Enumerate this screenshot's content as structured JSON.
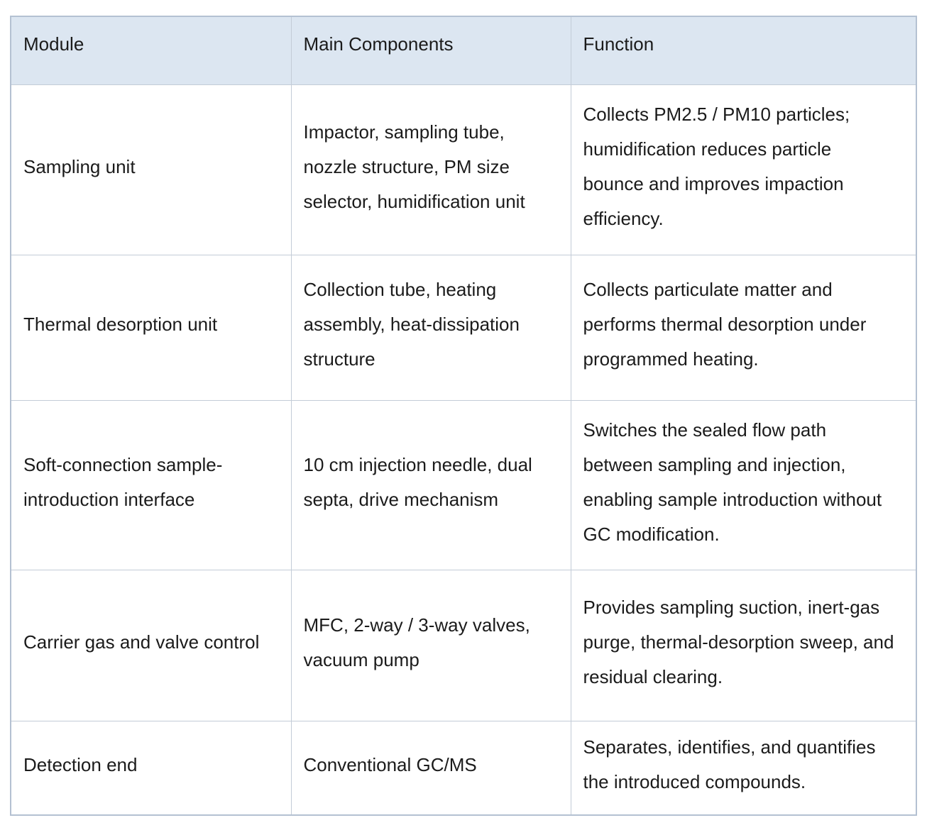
{
  "colors": {
    "header_background": "#dce6f1",
    "outer_border": "#b4c1d2",
    "inner_border": "#c3ccd7",
    "text": "#1b1b1b",
    "page_background": "#ffffff"
  },
  "table": {
    "headers": [
      "Module",
      "Main Components",
      "Function"
    ],
    "rows": [
      {
        "module": "Sampling unit",
        "components": "Impactor, sampling tube,\nnozzle structure, PM size\nselector, humidification unit",
        "function": "Collects PM2.5 / PM10 particles;\nhumidification reduces particle\nbounce and improves impaction\nefficiency."
      },
      {
        "module": "Thermal desorption unit",
        "components": "Collection tube, heating\nassembly, heat-dissipation\nstructure",
        "function": "Collects particulate matter and\nperforms thermal desorption under\nprogrammed heating."
      },
      {
        "module": "Soft-connection sample-\nintroduction interface",
        "components": "10 cm injection needle, dual\nsepta, drive mechanism",
        "function": "Switches the sealed flow path\nbetween sampling and injection,\nenabling sample introduction without\nGC modification."
      },
      {
        "module": "Carrier gas and valve control",
        "components": "MFC, 2-way / 3-way valves,\nvacuum pump",
        "function": "Provides sampling suction, inert-gas\npurge, thermal-desorption sweep, and\nresidual clearing."
      },
      {
        "module": "Detection end",
        "components": "Conventional GC/MS",
        "function": "Separates, identifies, and quantifies\nthe introduced compounds."
      }
    ]
  }
}
